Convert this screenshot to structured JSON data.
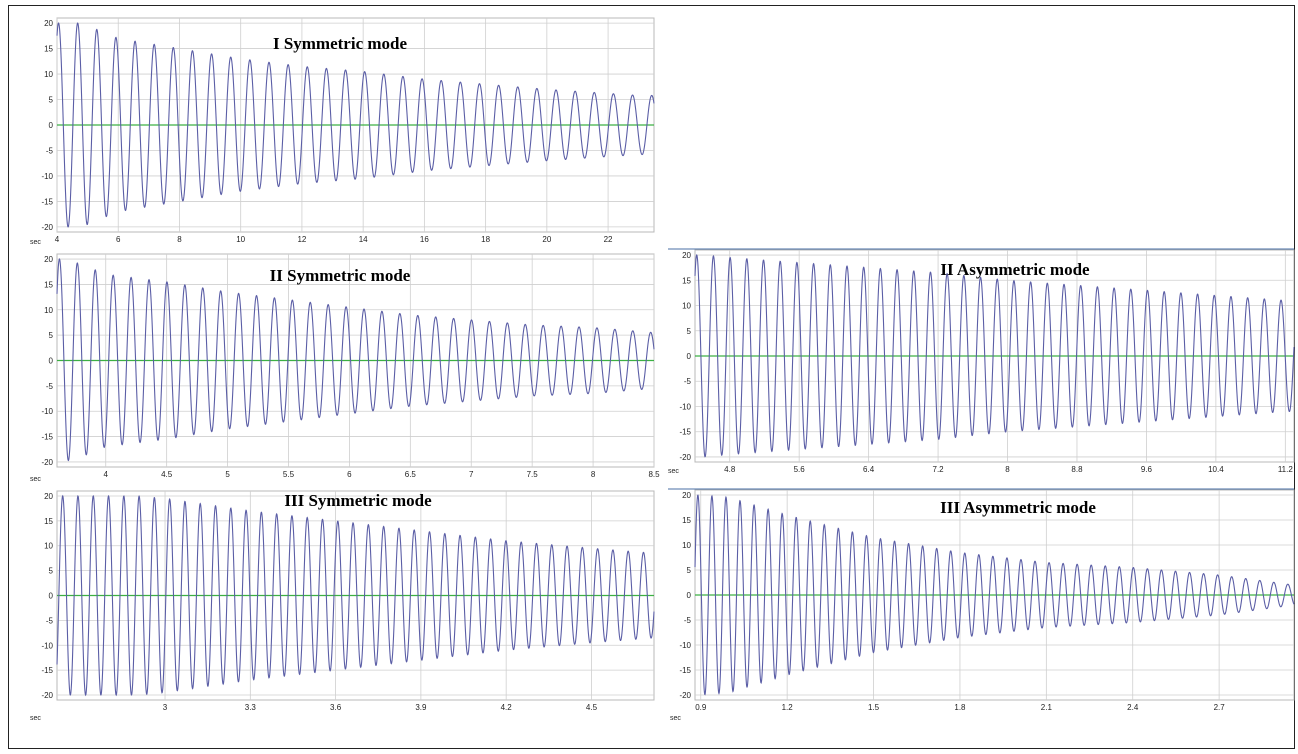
{
  "chart_data": [
    {
      "type": "line",
      "title": "I Symmetric mode",
      "xlabel": "sec",
      "xlim": [
        4,
        23.5
      ],
      "ylim": [
        -21,
        21
      ],
      "xticks": [
        4,
        6,
        8,
        10,
        12,
        14,
        16,
        18,
        20,
        22
      ],
      "yticks": [
        20,
        15,
        10,
        5,
        0,
        -5,
        -10,
        -15,
        -20
      ],
      "grid": true,
      "series": [
        {
          "color": "#5b5ea6",
          "frequency_hz": 1.6,
          "t0": 4.05,
          "peaks": [
            [
              4.2,
              20
            ],
            [
              4.8,
              20
            ],
            [
              6.0,
              17
            ],
            [
              8.0,
              15
            ],
            [
              10.0,
              13
            ],
            [
              12.0,
              11.5
            ],
            [
              14.0,
              10.5
            ],
            [
              16.0,
              9
            ],
            [
              18.0,
              8
            ],
            [
              20.0,
              7
            ],
            [
              22.0,
              6.2
            ],
            [
              23.0,
              5.8
            ]
          ]
        }
      ],
      "baseline": {
        "value": 0,
        "color": "#3cb043"
      }
    },
    {
      "type": "line",
      "title": "II Symmetric mode",
      "xlabel": "sec",
      "xlim": [
        3.6,
        8.5
      ],
      "ylim": [
        -21,
        21
      ],
      "xticks": [
        4,
        4.5,
        5,
        5.5,
        6,
        6.5,
        7,
        7.5,
        8,
        8.5
      ],
      "yticks": [
        20,
        15,
        10,
        5,
        0,
        -5,
        -10,
        -15,
        -20
      ],
      "grid": true,
      "series": [
        {
          "color": "#5b5ea6",
          "frequency_hz": 6.8,
          "t0": 3.62,
          "peaks": [
            [
              3.65,
              20
            ],
            [
              3.8,
              19
            ],
            [
              4.0,
              17
            ],
            [
              4.5,
              15.5
            ],
            [
              5.0,
              13.5
            ],
            [
              5.5,
              12
            ],
            [
              6.0,
              10.5
            ],
            [
              6.5,
              9
            ],
            [
              7.0,
              8
            ],
            [
              7.5,
              7
            ],
            [
              8.0,
              6.5
            ],
            [
              8.5,
              5.5
            ]
          ]
        }
      ],
      "baseline": {
        "value": 0,
        "color": "#3cb043"
      }
    },
    {
      "type": "line",
      "title": "III Symmetric mode",
      "xlabel": "sec",
      "xlim": [
        2.62,
        4.72
      ],
      "ylim": [
        -21,
        21
      ],
      "xticks": [
        3,
        3.3,
        3.6,
        3.9,
        4.2,
        4.5
      ],
      "yticks": [
        20,
        15,
        10,
        5,
        0,
        -5,
        -10,
        -15,
        -20
      ],
      "grid": true,
      "series": [
        {
          "color": "#5b5ea6",
          "frequency_hz": 18.6,
          "t0": 2.64,
          "peaks": [
            [
              2.65,
              20
            ],
            [
              2.9,
              20
            ],
            [
              3.0,
              19.5
            ],
            [
              3.3,
              17
            ],
            [
              3.6,
              15
            ],
            [
              3.9,
              13
            ],
            [
              4.2,
              11
            ],
            [
              4.5,
              9.5
            ],
            [
              4.72,
              8.5
            ]
          ]
        }
      ],
      "baseline": {
        "value": 0,
        "color": "#3cb043"
      }
    },
    {
      "type": "line",
      "title": "II Asymmetric mode",
      "xlabel": "sec",
      "xlim": [
        4.4,
        11.3
      ],
      "ylim": [
        -21,
        21
      ],
      "xticks": [
        4.8,
        5.6,
        6.4,
        7.2,
        8,
        8.8,
        9.6,
        10.4,
        11.2
      ],
      "yticks": [
        20,
        15,
        10,
        5,
        0,
        -5,
        -10,
        -15,
        -20
      ],
      "grid": true,
      "series": [
        {
          "color": "#5b5ea6",
          "frequency_hz": 5.2,
          "t0": 4.42,
          "peaks": [
            [
              4.5,
              20
            ],
            [
              4.8,
              19.5
            ],
            [
              5.6,
              18.5
            ],
            [
              6.4,
              17.5
            ],
            [
              7.2,
              16.5
            ],
            [
              8.0,
              15
            ],
            [
              8.8,
              14
            ],
            [
              9.6,
              13
            ],
            [
              10.4,
              12
            ],
            [
              11.2,
              11
            ]
          ]
        }
      ],
      "baseline": {
        "value": 0,
        "color": "#3cb043"
      }
    },
    {
      "type": "line",
      "title": "III Asymmetric mode",
      "xlabel": "sec",
      "xlim": [
        0.88,
        2.96
      ],
      "ylim": [
        -21,
        21
      ],
      "xticks": [
        0.9,
        1.2,
        1.5,
        1.8,
        2.1,
        2.4,
        2.7
      ],
      "yticks": [
        20,
        15,
        10,
        5,
        0,
        -5,
        -10,
        -15,
        -20
      ],
      "grid": true,
      "series": [
        {
          "color": "#5b5ea6",
          "frequency_hz": 20.5,
          "t0": 0.89,
          "peaks": [
            [
              0.9,
              20
            ],
            [
              1.0,
              19.5
            ],
            [
              1.2,
              16
            ],
            [
              1.5,
              11.5
            ],
            [
              1.8,
              8.5
            ],
            [
              2.1,
              6.5
            ],
            [
              2.4,
              5.5
            ],
            [
              2.7,
              4
            ],
            [
              2.96,
              2
            ]
          ]
        }
      ],
      "baseline": {
        "value": 0,
        "color": "#3cb043"
      }
    }
  ]
}
